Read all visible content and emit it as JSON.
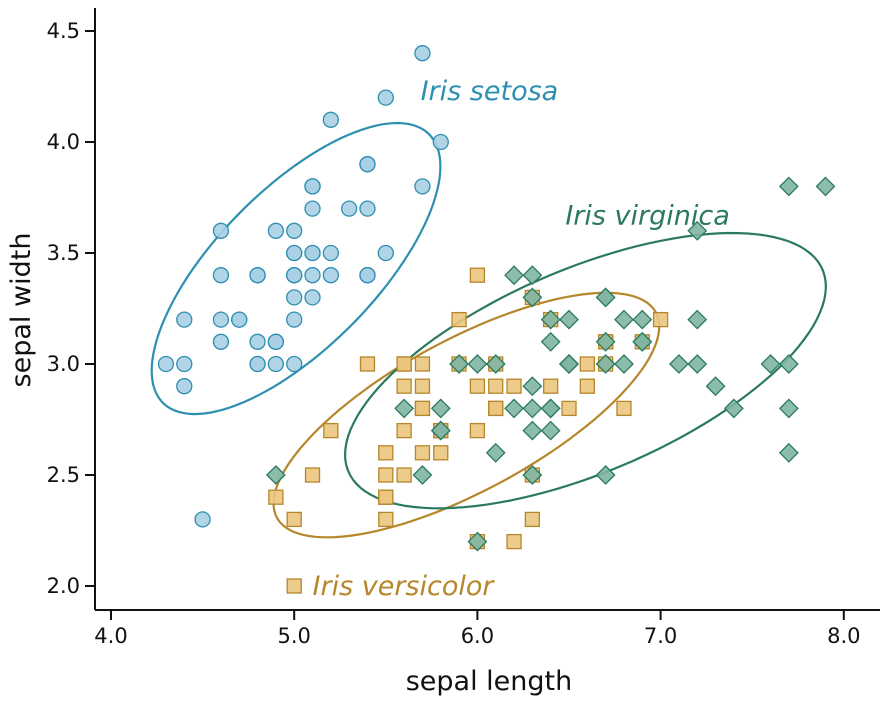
{
  "chart_data": {
    "type": "scatter",
    "xlabel": "sepal length",
    "ylabel": "sepal width",
    "xlim": [
      4.0,
      8.0
    ],
    "ylim": [
      2.0,
      4.5
    ],
    "xticks": [
      "4.0",
      "5.0",
      "6.0",
      "7.0",
      "8.0"
    ],
    "yticks": [
      "2.0",
      "2.5",
      "3.0",
      "3.5",
      "4.0",
      "4.5"
    ],
    "grid": false,
    "legend": "none (direct labels)",
    "series": [
      {
        "name": "Iris setosa",
        "marker": "circle",
        "color": "#2e8fb1",
        "fill": "#a9cfe4",
        "ellipse": {
          "center": [
            5.01,
            3.43
          ],
          "rx_axis": [
            0.72,
            0.61
          ],
          "ry_axis": [
            -0.32,
            0.24
          ]
        },
        "x": [
          5.1,
          4.9,
          4.7,
          4.6,
          5.0,
          5.4,
          4.6,
          5.0,
          4.4,
          4.9,
          5.4,
          4.8,
          4.8,
          4.3,
          5.8,
          5.7,
          5.4,
          5.1,
          5.7,
          5.1,
          5.4,
          5.1,
          4.6,
          5.1,
          4.8,
          5.0,
          5.0,
          5.2,
          5.2,
          4.7,
          4.8,
          5.4,
          5.2,
          5.5,
          4.9,
          5.0,
          5.5,
          4.9,
          4.4,
          5.1,
          5.0,
          4.5,
          4.4,
          5.0,
          5.1,
          4.8,
          5.1,
          4.6,
          5.3,
          5.0
        ],
        "y": [
          3.5,
          3.0,
          3.2,
          3.1,
          3.6,
          3.9,
          3.4,
          3.4,
          2.9,
          3.1,
          3.7,
          3.4,
          3.0,
          3.0,
          4.0,
          4.4,
          3.9,
          3.5,
          3.8,
          3.8,
          3.4,
          3.7,
          3.6,
          3.3,
          3.4,
          3.0,
          3.4,
          3.5,
          3.4,
          3.2,
          3.1,
          3.4,
          4.1,
          4.2,
          3.1,
          3.2,
          3.5,
          3.6,
          3.0,
          3.4,
          3.5,
          2.3,
          3.2,
          3.5,
          3.8,
          3.0,
          3.8,
          3.2,
          3.7,
          3.3
        ]
      },
      {
        "name": "Iris versicolor",
        "marker": "square",
        "color": "#b5872a",
        "fill": "#ebc57e",
        "ellipse": {
          "center": [
            5.94,
            2.77
          ],
          "rx_axis": [
            1.02,
            0.48
          ],
          "ry_axis": [
            -0.26,
            0.27
          ]
        },
        "x": [
          7.0,
          6.4,
          6.9,
          5.5,
          6.5,
          5.7,
          6.3,
          4.9,
          6.6,
          5.2,
          5.0,
          5.9,
          6.0,
          6.1,
          5.6,
          6.7,
          5.6,
          5.8,
          6.2,
          5.6,
          5.9,
          6.1,
          6.3,
          6.1,
          6.4,
          6.6,
          6.8,
          6.7,
          6.0,
          5.7,
          5.5,
          5.5,
          5.8,
          6.0,
          5.4,
          6.0,
          6.7,
          6.3,
          5.6,
          5.5,
          5.5,
          6.1,
          5.8,
          5.0,
          5.6,
          5.7,
          5.7,
          6.2,
          5.1,
          5.7
        ],
        "y": [
          3.2,
          3.2,
          3.1,
          2.3,
          2.8,
          2.8,
          3.3,
          2.4,
          2.9,
          2.7,
          2.0,
          3.0,
          2.2,
          2.9,
          2.9,
          3.1,
          3.0,
          2.7,
          2.2,
          2.5,
          3.2,
          2.8,
          2.5,
          2.8,
          2.9,
          3.0,
          2.8,
          3.0,
          2.9,
          2.6,
          2.4,
          2.4,
          2.7,
          2.7,
          3.0,
          3.4,
          3.1,
          2.3,
          3.0,
          2.5,
          2.6,
          3.0,
          2.6,
          2.3,
          2.7,
          3.0,
          2.9,
          2.9,
          2.5,
          2.8
        ]
      },
      {
        "name": "Iris virginica",
        "marker": "diamond",
        "color": "#2b7a5f",
        "fill": "#7fb5a2",
        "ellipse": {
          "center": [
            6.59,
            2.97
          ],
          "rx_axis": [
            1.27,
            0.49
          ],
          "ry_axis": [
            -0.33,
            0.38
          ]
        },
        "x": [
          6.3,
          5.8,
          7.1,
          6.3,
          6.5,
          7.6,
          4.9,
          7.3,
          6.7,
          7.2,
          6.5,
          6.4,
          6.8,
          5.7,
          5.8,
          6.4,
          6.5,
          7.7,
          7.7,
          6.0,
          6.9,
          5.6,
          7.7,
          6.3,
          6.7,
          7.2,
          6.2,
          6.1,
          6.4,
          7.2,
          7.4,
          7.9,
          6.4,
          6.3,
          6.1,
          7.7,
          6.3,
          6.4,
          6.0,
          6.9,
          6.7,
          6.9,
          5.8,
          6.8,
          6.7,
          6.7,
          6.3,
          6.5,
          6.2,
          5.9
        ],
        "y": [
          3.3,
          2.7,
          3.0,
          2.9,
          3.0,
          3.0,
          2.5,
          2.9,
          2.5,
          3.6,
          3.2,
          2.7,
          3.0,
          2.5,
          2.8,
          3.2,
          3.0,
          3.8,
          2.6,
          2.2,
          3.2,
          2.8,
          2.8,
          2.7,
          3.3,
          3.2,
          2.8,
          3.0,
          2.8,
          3.0,
          2.8,
          3.8,
          2.8,
          2.8,
          2.6,
          3.0,
          3.4,
          3.1,
          3.0,
          3.1,
          3.1,
          3.1,
          2.7,
          3.2,
          3.3,
          3.0,
          2.5,
          3.0,
          3.4,
          3.0
        ]
      }
    ],
    "annotations": [
      {
        "text": "Iris setosa",
        "series": 0,
        "x": 5.69,
        "y": 4.23
      },
      {
        "text": "Iris virginica",
        "series": 2,
        "x": 6.48,
        "y": 3.67
      },
      {
        "text": "Iris versicolor",
        "series": 1,
        "x": 5.1,
        "y": 2.0
      }
    ]
  }
}
